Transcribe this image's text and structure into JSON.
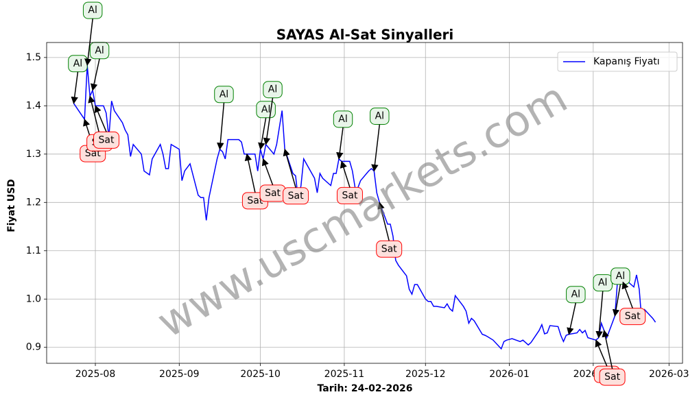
{
  "chart_data": {
    "type": "line",
    "title": "SAYAS Al-Sat Sinyalleri",
    "xlabel": "Tarih: 24-02-2026",
    "ylabel": "Fiyat USD",
    "watermark": "www.uscmarkets.com",
    "legend": "upper right",
    "grid": true,
    "xlim": [
      "2025-07-14",
      "2026-03-06"
    ],
    "ylim": [
      0.867,
      1.531
    ],
    "xticks": [
      {
        "value": "2025-08-01",
        "label": "2025-08"
      },
      {
        "value": "2025-09-01",
        "label": "2025-09"
      },
      {
        "value": "2025-10-01",
        "label": "2025-10"
      },
      {
        "value": "2025-11-01",
        "label": "2025-11"
      },
      {
        "value": "2025-12-01",
        "label": "2025-12"
      },
      {
        "value": "2026-01-01",
        "label": "2026-01"
      },
      {
        "value": "2026-02-01",
        "label": "2026-02"
      },
      {
        "value": "2026-03-01",
        "label": "2026-03"
      }
    ],
    "yticks": [
      0.9,
      {
        "value": 1,
        "label": "1.0"
      },
      1.1,
      1.2,
      1.3,
      1.4,
      1.5
    ],
    "x": [
      "2025-07-24",
      "2025-07-28",
      "2025-07-29",
      "2025-07-30",
      "2025-07-31",
      "2025-08-01",
      "2025-08-04",
      "2025-08-05",
      "2025-08-06",
      "2025-08-07",
      "2025-08-08",
      "2025-08-11",
      "2025-08-12",
      "2025-08-13",
      "2025-08-14",
      "2025-08-15",
      "2025-08-18",
      "2025-08-19",
      "2025-08-21",
      "2025-08-22",
      "2025-08-25",
      "2025-08-26",
      "2025-08-27",
      "2025-08-28",
      "2025-08-29",
      "2025-09-01",
      "2025-09-02",
      "2025-09-03",
      "2025-09-05",
      "2025-09-08",
      "2025-09-09",
      "2025-09-10",
      "2025-09-11",
      "2025-09-12",
      "2025-09-15",
      "2025-09-16",
      "2025-09-17",
      "2025-09-18",
      "2025-09-19",
      "2025-09-22",
      "2025-09-23",
      "2025-09-24",
      "2025-09-25",
      "2025-09-26",
      "2025-09-29",
      "2025-09-30",
      "2025-10-01",
      "2025-10-02",
      "2025-10-03",
      "2025-10-06",
      "2025-10-07",
      "2025-10-08",
      "2025-10-09",
      "2025-10-10",
      "2025-10-13",
      "2025-10-14",
      "2025-10-15",
      "2025-10-16",
      "2025-10-17",
      "2025-10-20",
      "2025-10-21",
      "2025-10-22",
      "2025-10-23",
      "2025-10-24",
      "2025-10-27",
      "2025-10-28",
      "2025-10-29",
      "2025-10-30",
      "2025-10-31",
      "2025-11-03",
      "2025-11-04",
      "2025-11-05",
      "2025-11-06",
      "2025-11-07",
      "2025-11-10",
      "2025-11-11",
      "2025-11-12",
      "2025-11-13",
      "2025-11-14",
      "2025-11-17",
      "2025-11-18",
      "2025-11-19",
      "2025-11-20",
      "2025-11-21",
      "2025-11-24",
      "2025-11-25",
      "2025-11-26",
      "2025-11-27",
      "2025-11-28",
      "2025-12-01",
      "2025-12-02",
      "2025-12-03",
      "2025-12-04",
      "2025-12-05",
      "2025-12-08",
      "2025-12-09",
      "2025-12-10",
      "2025-12-11",
      "2025-12-12",
      "2025-12-15",
      "2025-12-16",
      "2025-12-17",
      "2025-12-18",
      "2025-12-19",
      "2025-12-22",
      "2025-12-23",
      "2025-12-24",
      "2025-12-26",
      "2025-12-29",
      "2025-12-30",
      "2025-12-31",
      "2026-01-02",
      "2026-01-05",
      "2026-01-06",
      "2026-01-07",
      "2026-01-08",
      "2026-01-09",
      "2026-01-12",
      "2026-01-13",
      "2026-01-14",
      "2026-01-15",
      "2026-01-16",
      "2026-01-19",
      "2026-01-20",
      "2026-01-21",
      "2026-01-22",
      "2026-01-23",
      "2026-01-26",
      "2026-01-27",
      "2026-01-28",
      "2026-01-29",
      "2026-01-30",
      "2026-02-02",
      "2026-02-03",
      "2026-02-04",
      "2026-02-05",
      "2026-02-06",
      "2026-02-09",
      "2026-02-10",
      "2026-02-11",
      "2026-02-12",
      "2026-02-13",
      "2026-02-16",
      "2026-02-17",
      "2026-02-18",
      "2026-02-19",
      "2026-02-20",
      "2026-02-23",
      "2026-02-24"
    ],
    "series": [
      {
        "name": "Kapanış Fiyatı",
        "color": "#0000ff",
        "values": [
          1.405,
          1.372,
          1.484,
          1.42,
          1.432,
          1.4,
          1.4,
          1.385,
          1.335,
          1.41,
          1.39,
          1.365,
          1.35,
          1.34,
          1.295,
          1.32,
          1.3,
          1.265,
          1.257,
          1.29,
          1.32,
          1.3,
          1.27,
          1.27,
          1.32,
          1.31,
          1.245,
          1.265,
          1.28,
          1.215,
          1.21,
          1.21,
          1.163,
          1.21,
          1.29,
          1.31,
          1.305,
          1.29,
          1.33,
          1.33,
          1.33,
          1.325,
          1.3,
          1.3,
          1.3,
          1.265,
          1.31,
          1.29,
          1.32,
          1.3,
          1.32,
          1.355,
          1.39,
          1.31,
          1.26,
          1.255,
          1.205,
          1.235,
          1.29,
          1.26,
          1.25,
          1.22,
          1.26,
          1.25,
          1.235,
          1.26,
          1.26,
          1.29,
          1.285,
          1.285,
          1.265,
          1.23,
          1.23,
          1.245,
          1.265,
          1.27,
          1.265,
          1.22,
          1.2,
          1.155,
          1.155,
          1.13,
          1.08,
          1.07,
          1.048,
          1.02,
          1.01,
          1.03,
          1.03,
          1.0,
          0.995,
          0.995,
          0.985,
          0.985,
          0.982,
          0.99,
          0.98,
          0.975,
          1.007,
          0.985,
          0.975,
          0.95,
          0.96,
          0.955,
          0.927,
          0.925,
          0.922,
          0.915,
          0.897,
          0.912,
          0.915,
          0.918,
          0.912,
          0.915,
          0.91,
          0.905,
          0.91,
          0.935,
          0.947,
          0.928,
          0.93,
          0.945,
          0.943,
          0.925,
          0.912,
          0.925,
          0.927,
          0.93,
          0.937,
          0.93,
          0.935,
          0.92,
          0.915,
          0.92,
          0.95,
          0.935,
          0.92,
          0.965,
          1.04,
          1.045,
          1.035,
          1.04,
          1.025,
          1.05,
          1.02,
          0.95,
          0.978,
          0.96,
          0.952
        ]
      }
    ],
    "annotations": [
      {
        "text": "Al",
        "x": "2025-07-24",
        "y": 1.405
      },
      {
        "text": "Al",
        "x": "2025-07-29",
        "y": 1.484
      },
      {
        "text": "Al",
        "x": "2025-07-31",
        "y": 1.432
      },
      {
        "text": "Sat",
        "x": "2025-07-28",
        "y": 1.372
      },
      {
        "text": "Sat",
        "x": "2025-07-30",
        "y": 1.42
      },
      {
        "text": "Sat",
        "x": "2025-08-01",
        "y": 1.4
      },
      {
        "text": "Al",
        "x": "2025-09-16",
        "y": 1.31
      },
      {
        "text": "Sat",
        "x": "2025-09-26",
        "y": 1.3
      },
      {
        "text": "Al",
        "x": "2025-10-01",
        "y": 1.31
      },
      {
        "text": "Al",
        "x": "2025-10-03",
        "y": 1.32
      },
      {
        "text": "Sat",
        "x": "2025-10-02",
        "y": 1.29
      },
      {
        "text": "Sat",
        "x": "2025-10-10",
        "y": 1.31
      },
      {
        "text": "Al",
        "x": "2025-10-30",
        "y": 1.29
      },
      {
        "text": "Sat",
        "x": "2025-10-31",
        "y": 1.285
      },
      {
        "text": "Al",
        "x": "2025-11-12",
        "y": 1.265
      },
      {
        "text": "Sat",
        "x": "2025-11-14",
        "y": 1.2
      },
      {
        "text": "Al",
        "x": "2026-01-23",
        "y": 0.927
      },
      {
        "text": "Al",
        "x": "2026-02-03",
        "y": 0.92
      },
      {
        "text": "Al",
        "x": "2026-02-09",
        "y": 0.965
      },
      {
        "text": "Sat",
        "x": "2026-02-02",
        "y": 0.915
      },
      {
        "text": "Sat",
        "x": "2026-02-05",
        "y": 0.935
      },
      {
        "text": "Sat",
        "x": "2026-02-12",
        "y": 1.035
      }
    ]
  }
}
